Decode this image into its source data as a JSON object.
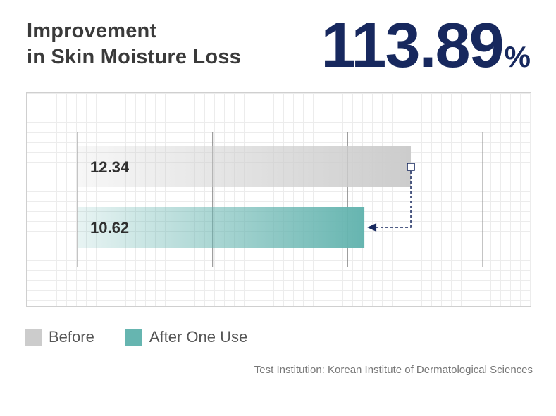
{
  "title_line1": "Improvement",
  "title_line2": "in Skin Moisture Loss",
  "headline_value": "113.89",
  "headline_unit": "%",
  "colors": {
    "headline": "#17285e",
    "before": "#cccccc",
    "after": "#66b5b0",
    "arrow": "#17285e"
  },
  "legend": [
    {
      "label": "Before",
      "color": "#cccccc"
    },
    {
      "label": "After One Use",
      "color": "#66b5b0"
    }
  ],
  "footnote": "Test Institution: Korean Institute of Dermatological Sciences",
  "chart_data": {
    "type": "bar",
    "orientation": "horizontal",
    "categories": [
      "Before",
      "After One Use"
    ],
    "values": [
      12.34,
      10.62
    ],
    "value_labels": [
      "12.34",
      "10.62"
    ],
    "xlim": [
      0,
      15
    ],
    "grid": true,
    "legend_position": "bottom-left",
    "annotation": "dashed arrow from the end of the Before bar to the end of the After One Use bar"
  }
}
